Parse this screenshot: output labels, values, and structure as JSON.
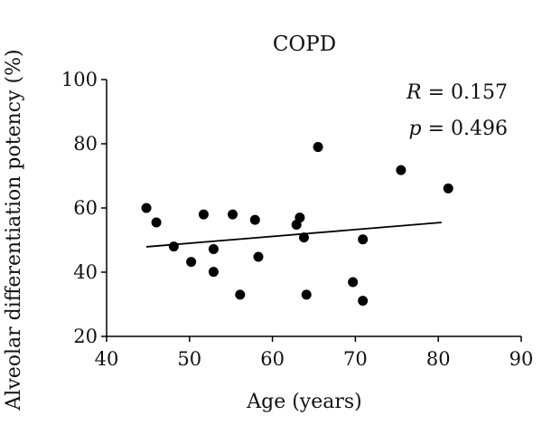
{
  "chart_data": {
    "type": "scatter",
    "title": "COPD",
    "xlabel": "Age (years)",
    "ylabel": "Alveolar differentiation potency (%)",
    "xlim": [
      40,
      90
    ],
    "ylim": [
      20,
      100
    ],
    "xticks": [
      40,
      50,
      60,
      70,
      80,
      90
    ],
    "yticks": [
      20,
      40,
      60,
      80,
      100
    ],
    "grid": false,
    "legend": "none",
    "points": [
      {
        "x": 44.8,
        "y": 60
      },
      {
        "x": 46.0,
        "y": 55.5
      },
      {
        "x": 48.1,
        "y": 48
      },
      {
        "x": 50.2,
        "y": 43.2
      },
      {
        "x": 51.7,
        "y": 58
      },
      {
        "x": 52.9,
        "y": 47.2
      },
      {
        "x": 52.9,
        "y": 40.1
      },
      {
        "x": 55.2,
        "y": 58
      },
      {
        "x": 56.1,
        "y": 33
      },
      {
        "x": 57.9,
        "y": 56.3
      },
      {
        "x": 58.3,
        "y": 44.8
      },
      {
        "x": 62.9,
        "y": 54.8
      },
      {
        "x": 63.3,
        "y": 57
      },
      {
        "x": 63.8,
        "y": 50.8
      },
      {
        "x": 64.1,
        "y": 33
      },
      {
        "x": 65.5,
        "y": 79
      },
      {
        "x": 69.7,
        "y": 36.9
      },
      {
        "x": 70.9,
        "y": 50.2
      },
      {
        "x": 70.9,
        "y": 31.1
      },
      {
        "x": 75.5,
        "y": 71.8
      },
      {
        "x": 81.2,
        "y": 66.1
      }
    ],
    "trendline": {
      "x": [
        44.8,
        80.4
      ],
      "y": [
        47.9,
        55.5
      ]
    },
    "annotations": {
      "r_symbol": "R",
      "r_value": " = 0.157",
      "p_symbol": "p",
      "p_value": " = 0.496"
    },
    "marker_color": "#000000",
    "line_color": "#000000"
  }
}
